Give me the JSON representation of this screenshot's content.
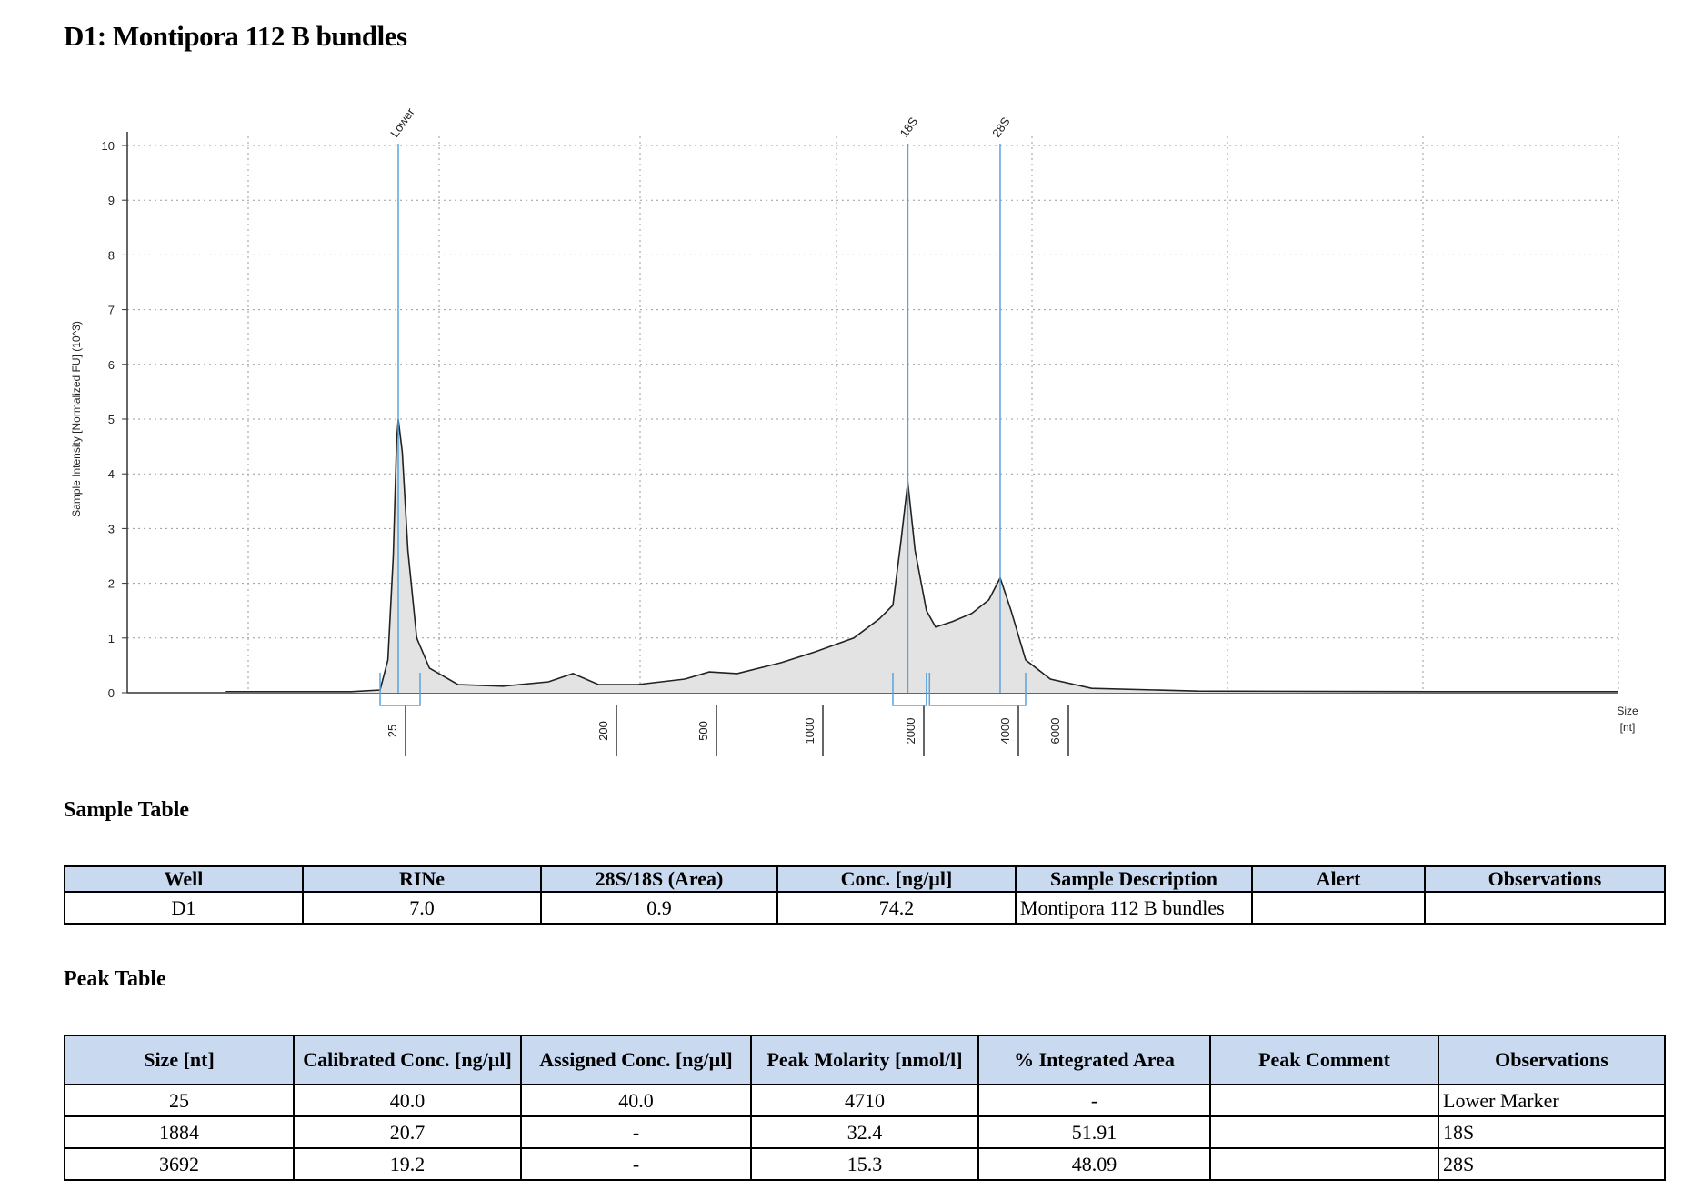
{
  "title": "D1: Montipora 112 B bundles",
  "chart_data": {
    "type": "line",
    "ylabel": "Sample Intensity [Normalized FU] (10^3)",
    "xlabel_line1": "Size",
    "xlabel_line2": "[nt]",
    "ylim": [
      0,
      10
    ],
    "yticks": [
      0,
      1,
      2,
      3,
      4,
      5,
      6,
      7,
      8,
      9,
      10
    ],
    "xticks": [
      {
        "label": "25",
        "pos": 25
      },
      {
        "label": "200",
        "pos": 200
      },
      {
        "label": "500",
        "pos": 500
      },
      {
        "label": "1000",
        "pos": 1000
      },
      {
        "label": "2000",
        "pos": 2000
      },
      {
        "label": "4000",
        "pos": 4000
      },
      {
        "label": "6000",
        "pos": 6000
      }
    ],
    "peak_markers": [
      {
        "label": "Lower",
        "size": 25
      },
      {
        "label": "18S",
        "size": 1884
      },
      {
        "label": "28S",
        "size": 3692
      }
    ],
    "trace": [
      {
        "size": 3,
        "fu": 0.02
      },
      {
        "size": 8,
        "fu": 0.02
      },
      {
        "size": 14,
        "fu": 0.02
      },
      {
        "size": 20,
        "fu": 0.05
      },
      {
        "size": 22,
        "fu": 0.6
      },
      {
        "size": 23.5,
        "fu": 2.5
      },
      {
        "size": 24.5,
        "fu": 4.6
      },
      {
        "size": 25,
        "fu": 5.0
      },
      {
        "size": 26,
        "fu": 4.4
      },
      {
        "size": 27.5,
        "fu": 2.6
      },
      {
        "size": 30,
        "fu": 1.0
      },
      {
        "size": 34,
        "fu": 0.45
      },
      {
        "size": 45,
        "fu": 0.15
      },
      {
        "size": 70,
        "fu": 0.12
      },
      {
        "size": 110,
        "fu": 0.2
      },
      {
        "size": 140,
        "fu": 0.35
      },
      {
        "size": 180,
        "fu": 0.15
      },
      {
        "size": 260,
        "fu": 0.15
      },
      {
        "size": 400,
        "fu": 0.25
      },
      {
        "size": 500,
        "fu": 0.38
      },
      {
        "size": 600,
        "fu": 0.35
      },
      {
        "size": 800,
        "fu": 0.55
      },
      {
        "size": 1000,
        "fu": 0.75
      },
      {
        "size": 1300,
        "fu": 1.0
      },
      {
        "size": 1550,
        "fu": 1.35
      },
      {
        "size": 1700,
        "fu": 1.6
      },
      {
        "size": 1800,
        "fu": 2.8
      },
      {
        "size": 1884,
        "fu": 3.85
      },
      {
        "size": 1980,
        "fu": 2.6
      },
      {
        "size": 2150,
        "fu": 1.5
      },
      {
        "size": 2300,
        "fu": 1.2
      },
      {
        "size": 2600,
        "fu": 1.3
      },
      {
        "size": 3000,
        "fu": 1.45
      },
      {
        "size": 3400,
        "fu": 1.7
      },
      {
        "size": 3692,
        "fu": 2.1
      },
      {
        "size": 4000,
        "fu": 1.5
      },
      {
        "size": 4500,
        "fu": 0.6
      },
      {
        "size": 5500,
        "fu": 0.25
      },
      {
        "size": 7000,
        "fu": 0.08
      },
      {
        "size": 12000,
        "fu": 0.03
      },
      {
        "size": 40000,
        "fu": 0.02
      },
      {
        "size": 100000,
        "fu": 0.02
      }
    ]
  },
  "sample_table": {
    "heading": "Sample Table",
    "headers": [
      "Well",
      "RINe",
      "28S/18S (Area)",
      "Conc. [ng/µl]",
      "Sample Description",
      "Alert",
      "Observations"
    ],
    "rows": [
      [
        "D1",
        "7.0",
        "0.9",
        "74.2",
        "Montipora 112 B bundles",
        "",
        ""
      ]
    ]
  },
  "peak_table": {
    "heading": "Peak Table",
    "headers": [
      "Size [nt]",
      "Calibrated Conc. [ng/µl]",
      "Assigned Conc. [ng/µl]",
      "Peak Molarity [nmol/l]",
      "% Integrated Area",
      "Peak Comment",
      "Observations"
    ],
    "rows": [
      [
        "25",
        "40.0",
        "40.0",
        "4710",
        "-",
        "",
        "Lower Marker"
      ],
      [
        "1884",
        "20.7",
        "-",
        "32.4",
        "51.91",
        "",
        "18S"
      ],
      [
        "3692",
        "19.2",
        "-",
        "15.3",
        "48.09",
        "",
        "28S"
      ]
    ]
  }
}
